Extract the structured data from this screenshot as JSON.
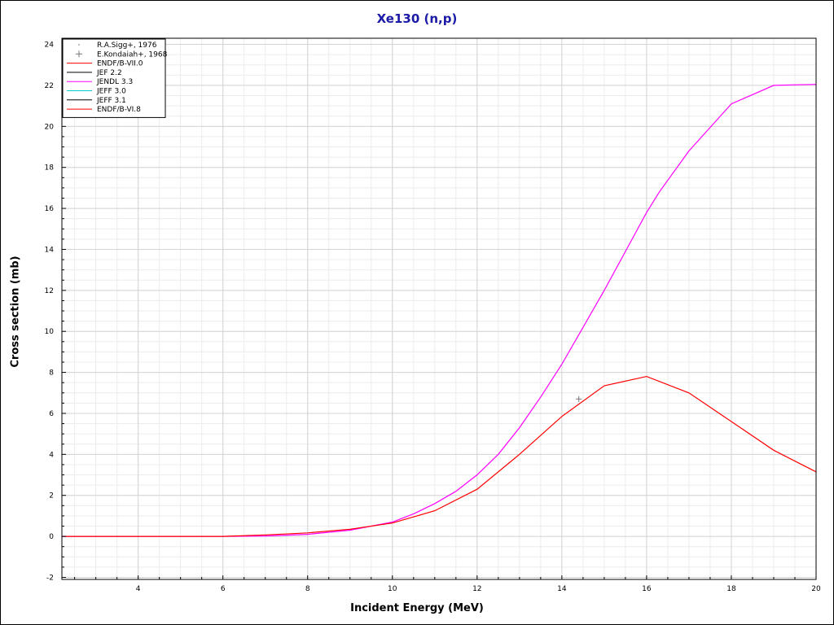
{
  "chart_data": {
    "type": "line",
    "title": "Xe130 (n,p)",
    "xlabel": "Incident Energy (MeV)",
    "ylabel": "Cross section (mb)",
    "xlim": [
      2.2,
      20
    ],
    "ylim": [
      -2.1,
      24.3
    ],
    "xticks": [
      4,
      6,
      8,
      10,
      12,
      14,
      16,
      18,
      20
    ],
    "yticks": [
      -2,
      0,
      2,
      4,
      6,
      8,
      10,
      12,
      14,
      16,
      18,
      20,
      22,
      24
    ],
    "grid": true,
    "legend_position": "top-left",
    "colors": {
      "title": "#1a1aa6",
      "endf_b_vii_0": "#ff0000",
      "jef_2_2": "#000000",
      "jendl_3_3": "#ff00ff",
      "jeff_3_0": "#00cccc",
      "jeff_3_1": "#000000",
      "endf_b_vi_8": "#ff0000",
      "grid": "#d4d4d4"
    },
    "legend": [
      {
        "name": "R.A.Sigg+, 1976",
        "marker": "dot",
        "color": "#aaaaaa"
      },
      {
        "name": "E.Kondaiah+, 1968",
        "marker": "plus",
        "color": "#777777"
      },
      {
        "name": "ENDF/B-VII.0",
        "marker": "line",
        "color": "#ff0000"
      },
      {
        "name": "JEF 2.2",
        "marker": "line",
        "color": "#000000"
      },
      {
        "name": "JENDL 3.3",
        "marker": "line",
        "color": "#ff00ff"
      },
      {
        "name": "JEFF 3.0",
        "marker": "line",
        "color": "#00cccc"
      },
      {
        "name": "JEFF 3.1",
        "marker": "line",
        "color": "#000000"
      },
      {
        "name": "ENDF/B-VI.8",
        "marker": "line",
        "color": "#ff0000"
      }
    ],
    "series": [
      {
        "name": "JENDL 3.3",
        "color": "#ff00ff",
        "x": [
          2.2,
          6.0,
          7.0,
          8.0,
          9.0,
          10.0,
          10.5,
          11.0,
          11.5,
          12.0,
          12.5,
          13.0,
          13.5,
          14.0,
          14.5,
          15.0,
          15.5,
          16.0,
          16.3,
          17.0,
          18.0,
          19.0,
          20.0
        ],
        "y": [
          0.0,
          0.0,
          0.02,
          0.1,
          0.3,
          0.7,
          1.1,
          1.6,
          2.2,
          3.0,
          4.0,
          5.3,
          6.8,
          8.4,
          10.2,
          12.0,
          13.9,
          15.8,
          16.8,
          18.8,
          21.1,
          22.0,
          22.05
        ]
      },
      {
        "name": "ENDF/B-VII.0",
        "color": "#ff0000",
        "x": [
          2.2,
          6.0,
          7.0,
          8.0,
          9.0,
          10.0,
          11.0,
          12.0,
          13.0,
          14.0,
          15.0,
          16.0,
          17.0,
          18.0,
          19.0,
          20.0
        ],
        "y": [
          0.0,
          0.0,
          0.07,
          0.17,
          0.35,
          0.65,
          1.25,
          2.3,
          4.0,
          5.85,
          7.35,
          7.8,
          7.0,
          5.6,
          4.2,
          3.15
        ]
      }
    ],
    "points": [
      {
        "name": "E.Kondaiah+, 1968",
        "marker": "plus",
        "x": 14.4,
        "y": 6.7
      }
    ]
  }
}
